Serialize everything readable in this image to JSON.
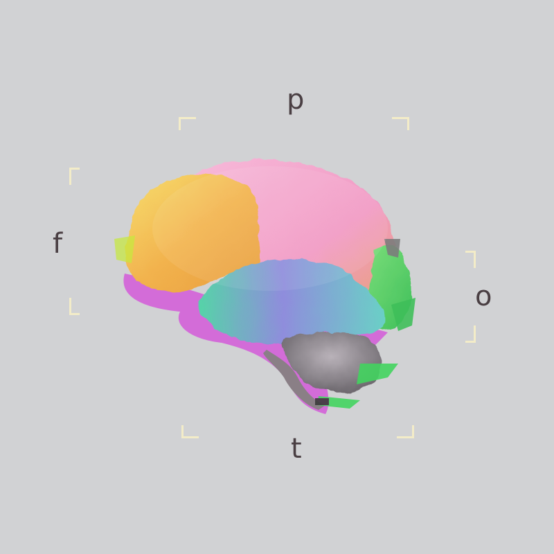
{
  "labels": {
    "parietal": "p",
    "frontal": "f",
    "occipital": "o",
    "temporal": "t"
  },
  "brain_image": {
    "subject": "brain-lateral-view",
    "regions": [
      "frontal-lobe",
      "parietal-lobe",
      "occipital-lobe",
      "temporal-lobe",
      "cerebellum",
      "brainstem"
    ]
  },
  "colors": {
    "background": "#d1d2d4",
    "letter": "#4a3f43",
    "bracket": "#f3ecc8",
    "frontal": "#f2c85a",
    "parietal": "#f3a6c9",
    "temporal": "#6cc9c0",
    "temporal_highlight": "#8d88d8",
    "occipital": "#5fd36a",
    "cerebellum": "#8a8a8a",
    "shadow_magenta": "#d062d8"
  }
}
